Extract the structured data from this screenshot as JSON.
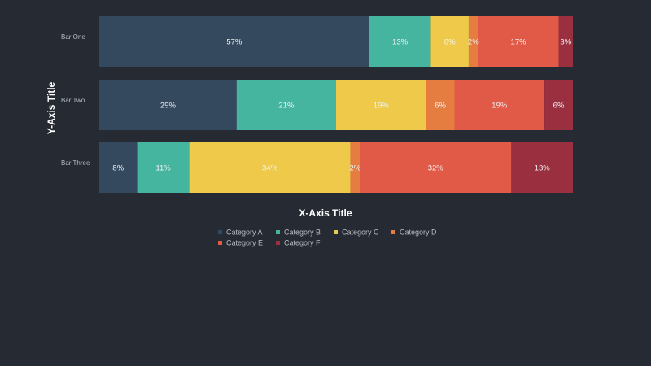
{
  "chart_data": {
    "type": "bar",
    "orientation": "horizontal",
    "stacked": true,
    "categories": [
      "Bar One",
      "Bar Two",
      "Bar Three"
    ],
    "series": [
      {
        "name": "Category A",
        "color": "#34495e",
        "values": [
          57,
          29,
          8
        ]
      },
      {
        "name": "Category B",
        "color": "#46b59f",
        "values": [
          13,
          21,
          11
        ]
      },
      {
        "name": "Category C",
        "color": "#eec94a",
        "values": [
          8,
          19,
          34
        ]
      },
      {
        "name": "Category D",
        "color": "#e57d40",
        "values": [
          2,
          6,
          2
        ]
      },
      {
        "name": "Category E",
        "color": "#e05a47",
        "values": [
          17,
          19,
          32
        ]
      },
      {
        "name": "Category F",
        "color": "#992f3f",
        "values": [
          3,
          6,
          13
        ]
      }
    ],
    "value_suffix": "%",
    "xlabel": "X-Axis Title",
    "ylabel": "Y-Axis Title",
    "grid": false,
    "legend": "bottom-center"
  }
}
